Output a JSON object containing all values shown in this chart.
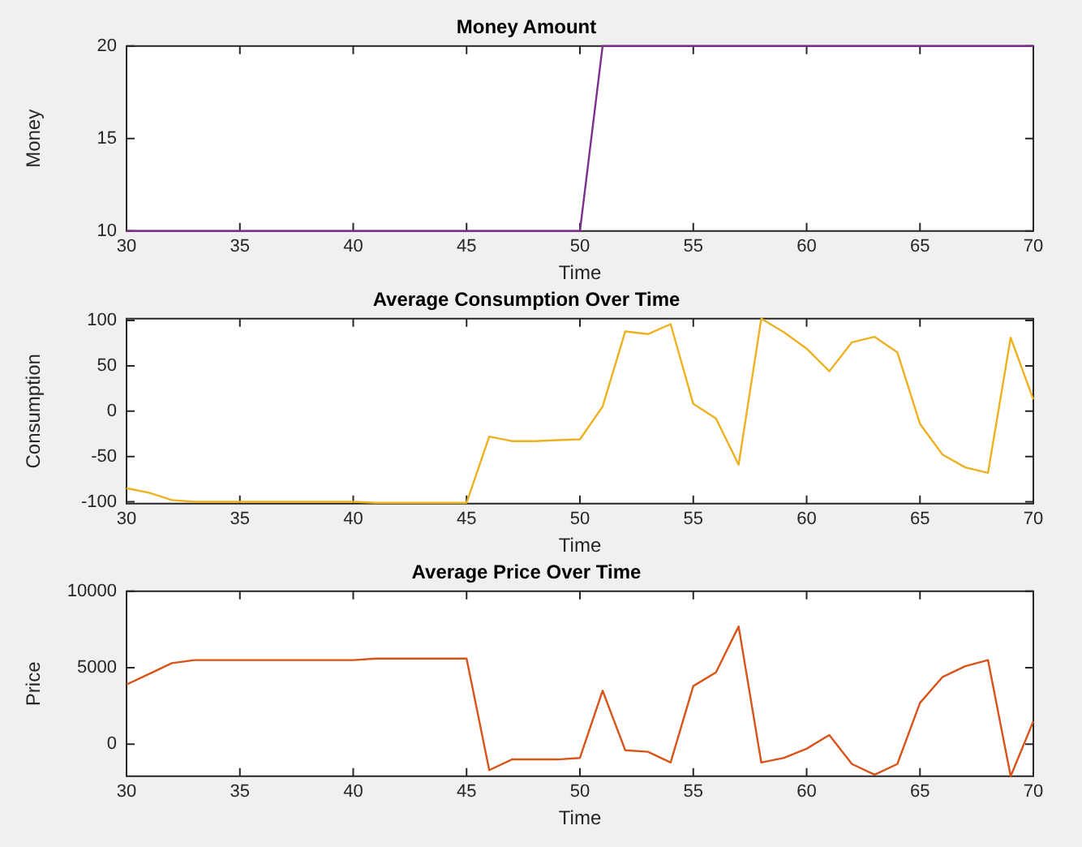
{
  "chart_data": [
    {
      "type": "line",
      "title": "Money Amount",
      "xlabel": "Time",
      "ylabel": "Money",
      "x": [
        30,
        31,
        32,
        33,
        34,
        35,
        36,
        37,
        38,
        39,
        40,
        41,
        42,
        43,
        44,
        45,
        46,
        47,
        48,
        49,
        50,
        51,
        52,
        53,
        54,
        55,
        56,
        57,
        58,
        59,
        60,
        61,
        62,
        63,
        64,
        65,
        66,
        67,
        68,
        69,
        70
      ],
      "series": [
        {
          "color": "#7e2f8e",
          "values": [
            10,
            10,
            10,
            10,
            10,
            10,
            10,
            10,
            10,
            10,
            10,
            10,
            10,
            10,
            10,
            10,
            10,
            10,
            10,
            10,
            10,
            20,
            20,
            20,
            20,
            20,
            20,
            20,
            20,
            20,
            20,
            20,
            20,
            20,
            20,
            20,
            20,
            20,
            20,
            20,
            20
          ]
        }
      ],
      "xlim": [
        30,
        70
      ],
      "xticks": [
        30,
        35,
        40,
        45,
        50,
        55,
        60,
        65,
        70
      ],
      "ylim": [
        10,
        20
      ],
      "yticks": [
        10,
        15,
        20
      ],
      "grid": false,
      "legend": false,
      "marker": "none",
      "line_style": "solid"
    },
    {
      "type": "line",
      "title": "Average Consumption Over Time",
      "xlabel": "Time",
      "ylabel": "Consumption",
      "x": [
        30,
        31,
        32,
        33,
        34,
        35,
        36,
        37,
        38,
        39,
        40,
        41,
        42,
        43,
        44,
        45,
        46,
        47,
        48,
        49,
        50,
        51,
        52,
        53,
        54,
        55,
        56,
        57,
        58,
        59,
        60,
        61,
        62,
        63,
        64,
        65,
        66,
        67,
        68,
        69,
        70
      ],
      "series": [
        {
          "color": "#edb120",
          "values": [
            -85,
            -90,
            -98,
            -100,
            -100,
            -100,
            -100,
            -100,
            -100,
            -100,
            -100,
            -101,
            -101,
            -101,
            -101,
            -101,
            -28,
            -33,
            -33,
            -32,
            -31,
            5,
            88,
            85,
            96,
            8,
            -8,
            -59,
            102,
            87,
            69,
            44,
            76,
            82,
            65,
            -14,
            -48,
            -62,
            -68,
            81,
            13
          ]
        }
      ],
      "xlim": [
        30,
        70
      ],
      "xticks": [
        30,
        35,
        40,
        45,
        50,
        55,
        60,
        65,
        70
      ],
      "ylim": [
        -102,
        102
      ],
      "yticks": [
        -100,
        -50,
        0,
        50,
        100
      ],
      "grid": false,
      "legend": false,
      "marker": "none",
      "line_style": "solid"
    },
    {
      "type": "line",
      "title": "Average Price Over Time",
      "xlabel": "Time",
      "ylabel": "Price",
      "x": [
        30,
        31,
        32,
        33,
        34,
        35,
        36,
        37,
        38,
        39,
        40,
        41,
        42,
        43,
        44,
        45,
        46,
        47,
        48,
        49,
        50,
        51,
        52,
        53,
        54,
        55,
        56,
        57,
        58,
        59,
        60,
        61,
        62,
        63,
        64,
        65,
        66,
        67,
        68,
        69,
        70
      ],
      "series": [
        {
          "color": "#d95319",
          "values": [
            3900,
            4600,
            5300,
            5500,
            5500,
            5500,
            5500,
            5500,
            5500,
            5500,
            5500,
            5600,
            5600,
            5600,
            5600,
            5600,
            -1700,
            -1000,
            -1000,
            -1000,
            -900,
            3500,
            -400,
            -500,
            -1200,
            3800,
            4700,
            7700,
            -1200,
            -900,
            -300,
            600,
            -1300,
            -2000,
            -1300,
            2700,
            4400,
            5100,
            5500,
            -2100,
            1500
          ]
        }
      ],
      "xlim": [
        30,
        70
      ],
      "xticks": [
        30,
        35,
        40,
        45,
        50,
        55,
        60,
        65,
        70
      ],
      "ylim": [
        -2100,
        10000
      ],
      "yticks": [
        0,
        5000,
        10000
      ],
      "grid": false,
      "legend": false,
      "marker": "none",
      "line_style": "solid"
    }
  ]
}
